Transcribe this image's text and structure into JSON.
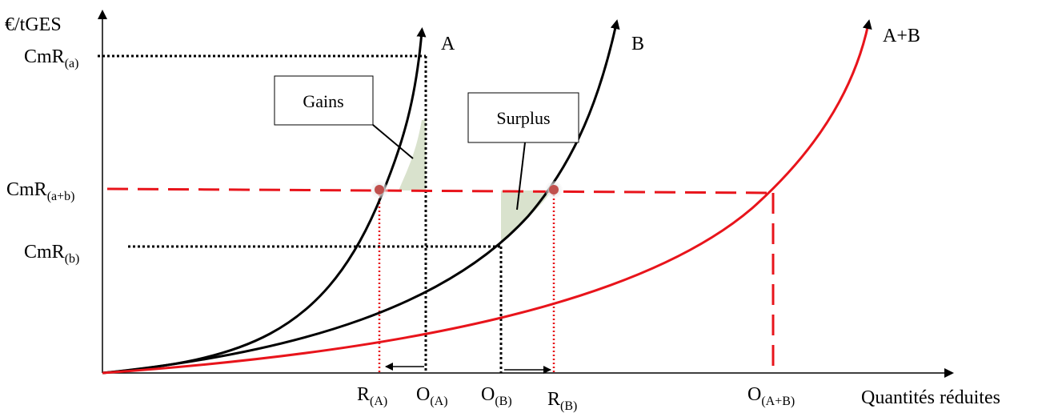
{
  "axes": {
    "y_label": "€/tGES",
    "x_label": "Quantités réduites"
  },
  "curves": [
    {
      "id": "A",
      "label": "A",
      "color": "#000000"
    },
    {
      "id": "B",
      "label": "B",
      "color": "#000000"
    },
    {
      "id": "AB",
      "label": "A+B",
      "color": "#e8141b"
    }
  ],
  "y_levels": {
    "cmr_a": {
      "main": "CmR",
      "sub": "(a)"
    },
    "cmr_ab": {
      "main": "CmR",
      "sub": "(a+b)"
    },
    "cmr_b": {
      "main": "CmR",
      "sub": "(b)"
    }
  },
  "x_marks": {
    "r_a": {
      "main": "R",
      "sub": "(A)"
    },
    "o_a": {
      "main": "O",
      "sub": "(A)"
    },
    "o_b": {
      "main": "O",
      "sub": "(B)"
    },
    "r_b": {
      "main": "R",
      "sub": "(B)"
    },
    "o_ab": {
      "main": "O",
      "sub": "(A+B)"
    }
  },
  "callouts": {
    "gains": "Gains",
    "surplus": "Surplus"
  },
  "colors": {
    "red": "#e8141b",
    "shade": "#d9e2cd",
    "dot": "#c0504d"
  }
}
